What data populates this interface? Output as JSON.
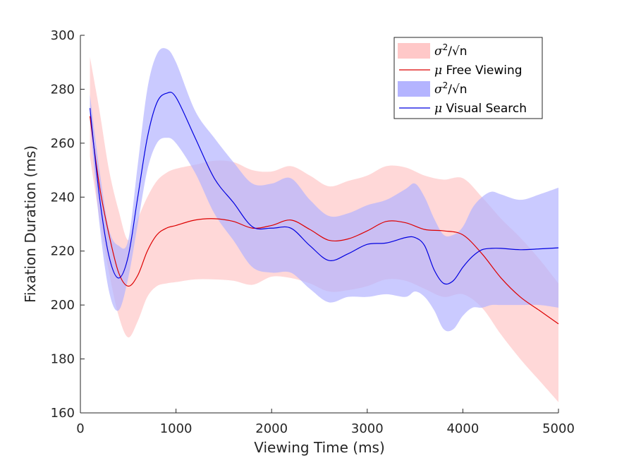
{
  "chart_data": {
    "type": "line",
    "title": "",
    "xlabel": "Viewing Time (ms)",
    "ylabel": "Fixation Duration (ms)",
    "xlim": [
      0,
      5000
    ],
    "ylim": [
      160,
      300
    ],
    "x_ticks": [
      0,
      1000,
      2000,
      3000,
      4000,
      5000
    ],
    "y_ticks": [
      160,
      180,
      200,
      220,
      240,
      260,
      280,
      300
    ],
    "x_tick_labels": [
      "0",
      "1000",
      "2000",
      "3000",
      "4000",
      "5000"
    ],
    "y_tick_labels": [
      "160",
      "180",
      "200",
      "220",
      "240",
      "260",
      "280",
      "300"
    ],
    "grid": false,
    "legend_position": "top-right",
    "series": [
      {
        "name": "Free Viewing",
        "color": "#dd0000",
        "band_color": "#ffc8c8",
        "band_label_main": "σ",
        "band_label_sup": "2",
        "band_label_rest": "/√n",
        "mean_label_mu": "μ",
        "mean_label_rest": " Free Viewing",
        "x": [
          100,
          200,
          300,
          400,
          500,
          600,
          700,
          800,
          900,
          1000,
          1200,
          1400,
          1600,
          1800,
          2000,
          2200,
          2400,
          2600,
          2800,
          3000,
          3200,
          3400,
          3600,
          3800,
          4000,
          4200,
          4400,
          4600,
          4800,
          5000
        ],
        "mean": [
          270,
          244,
          226,
          212,
          207,
          211,
          220,
          226,
          228.5,
          229.5,
          231.5,
          232,
          231,
          228.5,
          229.5,
          231.5,
          228,
          224,
          224.5,
          227.5,
          231,
          230.5,
          228,
          227.5,
          226,
          219,
          210,
          203,
          198,
          193
        ],
        "upper": [
          292,
          272,
          250,
          235,
          224,
          232,
          240,
          246,
          249,
          250.5,
          252,
          253.5,
          253,
          250,
          249.5,
          251.5,
          248,
          244,
          246,
          248,
          251.5,
          251,
          248,
          246.5,
          247,
          240,
          232,
          225,
          217,
          208
        ],
        "lower": [
          255,
          232,
          212,
          196,
          188,
          194,
          203,
          207,
          208,
          208.5,
          209.5,
          209.5,
          209,
          207.5,
          210.5,
          210,
          208,
          205,
          205.5,
          207,
          209.5,
          209,
          206,
          203,
          204,
          199,
          189,
          180,
          172,
          164
        ]
      },
      {
        "name": "Visual Search",
        "color": "#0000e0",
        "band_color": "#b4b4ff",
        "band_label_main": "σ",
        "band_label_sup": "2",
        "band_label_rest": "/√n",
        "mean_label_mu": "μ",
        "mean_label_rest": " Visual Search",
        "x": [
          100,
          200,
          300,
          400,
          500,
          600,
          700,
          800,
          900,
          1000,
          1200,
          1400,
          1600,
          1800,
          2000,
          2200,
          2400,
          2600,
          2800,
          3000,
          3200,
          3400,
          3500,
          3600,
          3700,
          3800,
          3900,
          4000,
          4100,
          4200,
          4300,
          4400,
          4600,
          4800,
          5000
        ],
        "mean": [
          273,
          240,
          218,
          210,
          218,
          240,
          262,
          275,
          278.5,
          277,
          262,
          247,
          238,
          229,
          228.5,
          228.5,
          222,
          216.5,
          219,
          222.5,
          223,
          225,
          225,
          222,
          213,
          208,
          209,
          214,
          218,
          220.5,
          221,
          221,
          220.5,
          220.8,
          221.2
        ],
        "upper": [
          278,
          250,
          228,
          222,
          224,
          252,
          280,
          293,
          295,
          290,
          272,
          262,
          253,
          245,
          245,
          247,
          239,
          233,
          234,
          237,
          239,
          243,
          245,
          240,
          232,
          226,
          226,
          229,
          236,
          240,
          242,
          241,
          239,
          241,
          243.5
        ],
        "lower": [
          268,
          230,
          205,
          198,
          210,
          230,
          250,
          260,
          262,
          260,
          249,
          234,
          224,
          214,
          212,
          212,
          206,
          201,
          203,
          203,
          204,
          203,
          205,
          203,
          198,
          191,
          191,
          196,
          199,
          199,
          200,
          200,
          200,
          200,
          199
        ]
      }
    ]
  }
}
